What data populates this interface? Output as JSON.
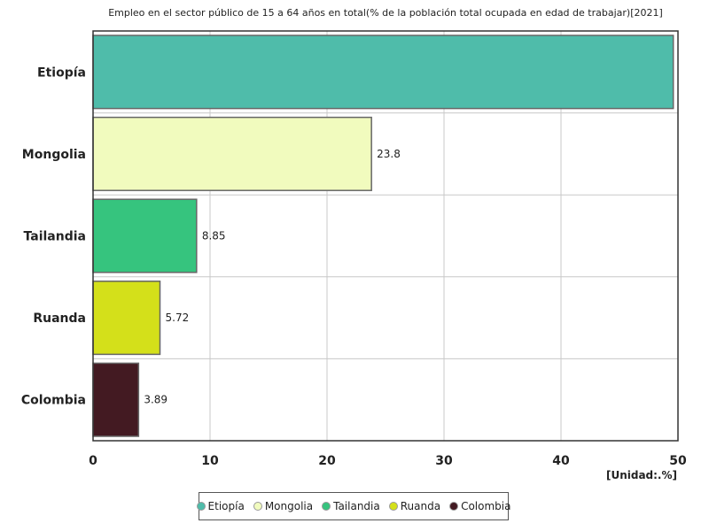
{
  "chart_data": {
    "type": "bar",
    "orientation": "horizontal",
    "title": "Empleo en el sector público de 15 a 64 años en total(% de la población total ocupada en edad de trabajar)[2021]",
    "unit_label": "[Unidad:.%]",
    "categories": [
      "Etiopía",
      "Mongolia",
      "Tailandia",
      "Ruanda",
      "Colombia"
    ],
    "values": [
      49.6,
      23.8,
      8.85,
      5.72,
      3.89
    ],
    "value_labels": [
      "",
      "23.8",
      "8.85",
      "5.72",
      "3.89"
    ],
    "colors": [
      "#4fbcaa",
      "#f1fbbe",
      "#36c47e",
      "#d4e01a",
      "#431a22"
    ],
    "xlim": [
      0,
      50
    ],
    "xticks": [
      "0",
      "10",
      "20",
      "30",
      "40",
      "50"
    ],
    "grid": true,
    "legend_position": "bottom"
  }
}
